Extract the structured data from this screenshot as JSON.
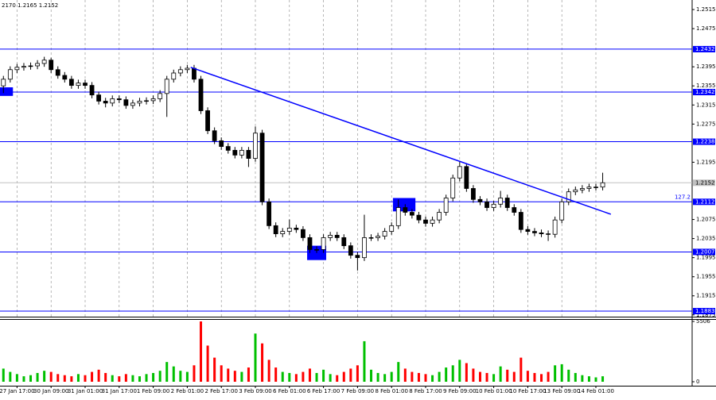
{
  "chart_data": {
    "type": "candlestick",
    "header": "2170 1.2165 1.2152",
    "categories": [
      null,
      null,
      "27 Jan 17:00",
      null,
      null,
      null,
      null,
      "30 Jan 09:00",
      null,
      null,
      null,
      null,
      "31 Jan 01:00",
      null,
      null,
      null,
      null,
      "31 Jan 17:00",
      null,
      null,
      null,
      null,
      "1 Feb 09:00",
      null,
      null,
      null,
      null,
      "2 Feb 01:00",
      null,
      null,
      null,
      null,
      "2 Feb 17:00",
      null,
      null,
      null,
      null,
      "3 Feb 09:00",
      null,
      null,
      null,
      null,
      "6 Feb 01:00",
      null,
      null,
      null,
      null,
      "6 Feb 17:00",
      null,
      null,
      null,
      null,
      "7 Feb 09:00",
      null,
      null,
      null,
      null,
      "8 Feb 01:00",
      null,
      null,
      null,
      null,
      "8 Feb 17:00",
      null,
      null,
      null,
      null,
      "9 Feb 09:00",
      null,
      null,
      null,
      null,
      "10 Feb 01:00",
      null,
      null,
      null,
      null,
      "10 Feb 17:00",
      null,
      null,
      null,
      null,
      "13 Feb 09:00",
      null,
      null,
      null,
      null,
      "14 Feb 01:00",
      null
    ],
    "open": [
      1.2355,
      1.2369,
      1.2389,
      1.2394,
      1.2396,
      1.2397,
      1.2402,
      1.2409,
      1.2389,
      1.2377,
      1.2369,
      1.2356,
      1.2361,
      1.2356,
      1.2336,
      1.2323,
      1.2319,
      1.2328,
      1.2326,
      1.2314,
      1.2319,
      1.2323,
      1.2324,
      1.2328,
      1.2339,
      1.2369,
      1.2382,
      1.2389,
      1.2392,
      1.2369,
      1.2303,
      1.2261,
      1.224,
      1.2228,
      1.222,
      1.221,
      1.222,
      1.2203,
      1.2256,
      1.2112,
      1.2062,
      1.2045,
      1.205,
      1.2057,
      1.2054,
      1.2037,
      1.2012,
      1.2012,
      1.2037,
      1.2042,
      1.2037,
      1.202,
      1.2,
      1.1995,
      1.2037,
      1.2037,
      1.204,
      1.205,
      1.2062,
      1.21,
      1.209,
      1.2084,
      1.2074,
      1.2067,
      1.2074,
      1.209,
      1.212,
      1.2162,
      1.2186,
      1.214,
      1.2117,
      1.2112,
      1.21,
      1.2107,
      1.212,
      1.21,
      1.209,
      1.2054,
      1.205,
      1.2047,
      1.2045,
      1.2044,
      1.2074,
      1.2112,
      1.2133,
      1.2137,
      1.214,
      1.2143,
      1.2143
    ],
    "high": [
      1.2376,
      1.2396,
      1.2401,
      1.2403,
      1.2404,
      1.2409,
      1.2416,
      1.2414,
      1.2396,
      1.2384,
      1.2376,
      1.2368,
      1.2368,
      1.2363,
      1.2343,
      1.233,
      1.2335,
      1.2335,
      1.2333,
      1.2326,
      1.233,
      1.2331,
      1.2335,
      1.2346,
      1.2376,
      1.2389,
      1.2396,
      1.2399,
      1.2399,
      1.2376,
      1.231,
      1.2268,
      1.2247,
      1.2235,
      1.2227,
      1.2227,
      1.2227,
      1.227,
      1.2263,
      1.2119,
      1.2069,
      1.2057,
      1.2075,
      1.2064,
      1.2061,
      1.2044,
      1.2019,
      1.2044,
      1.2049,
      1.2049,
      1.2044,
      1.2027,
      1.2007,
      1.2085,
      1.2044,
      1.2047,
      1.2057,
      1.2069,
      1.2117,
      1.2107,
      1.2097,
      1.2091,
      1.2081,
      1.2081,
      1.2097,
      1.2127,
      1.2169,
      1.2198,
      1.2193,
      1.2147,
      1.2124,
      1.2119,
      1.2114,
      1.2135,
      1.2127,
      1.2107,
      1.2097,
      1.2061,
      1.2057,
      1.2054,
      1.2052,
      1.2081,
      1.2119,
      1.214,
      1.2144,
      1.2147,
      1.215,
      1.215,
      1.2173
    ],
    "low": [
      1.234,
      1.2362,
      1.2382,
      1.2387,
      1.2389,
      1.239,
      1.2395,
      1.2382,
      1.237,
      1.2362,
      1.2349,
      1.2349,
      1.2349,
      1.2329,
      1.2316,
      1.231,
      1.2312,
      1.2319,
      1.2307,
      1.2307,
      1.2312,
      1.2316,
      1.2317,
      1.2321,
      1.229,
      1.2362,
      1.2375,
      1.2382,
      1.2362,
      1.2296,
      1.2254,
      1.2233,
      1.2221,
      1.2213,
      1.2203,
      1.2203,
      1.2185,
      1.2196,
      1.2105,
      1.2055,
      1.2038,
      1.2038,
      1.2043,
      1.2047,
      1.203,
      1.2005,
      1.2005,
      1.2005,
      1.203,
      1.203,
      1.2013,
      1.1993,
      1.1968,
      1.1988,
      1.203,
      1.203,
      1.2033,
      1.2043,
      1.2055,
      1.2083,
      1.2077,
      1.2067,
      1.206,
      1.206,
      1.2067,
      1.2083,
      1.2113,
      1.2155,
      1.2133,
      1.211,
      1.2105,
      1.2093,
      1.2093,
      1.21,
      1.2093,
      1.2083,
      1.2047,
      1.2043,
      1.204,
      1.2038,
      1.203,
      1.2037,
      1.2067,
      1.2105,
      1.2126,
      1.213,
      1.2133,
      1.2136,
      1.2136
    ],
    "close": [
      1.2369,
      1.2389,
      1.2394,
      1.2396,
      1.2397,
      1.2402,
      1.2409,
      1.2389,
      1.2377,
      1.2369,
      1.2356,
      1.2361,
      1.2356,
      1.2336,
      1.2323,
      1.2319,
      1.2328,
      1.2326,
      1.2314,
      1.2319,
      1.2323,
      1.2324,
      1.2328,
      1.2339,
      1.2369,
      1.2382,
      1.2389,
      1.2392,
      1.2369,
      1.2303,
      1.2261,
      1.224,
      1.2228,
      1.222,
      1.221,
      1.222,
      1.2203,
      1.2256,
      1.2112,
      1.2062,
      1.2045,
      1.205,
      1.2057,
      1.2054,
      1.2037,
      1.2012,
      1.2012,
      1.2037,
      1.2042,
      1.2037,
      1.202,
      1.2,
      1.1995,
      1.2037,
      1.2037,
      1.204,
      1.205,
      1.2062,
      1.21,
      1.209,
      1.2084,
      1.2074,
      1.2067,
      1.2074,
      1.209,
      1.212,
      1.2162,
      1.2186,
      1.214,
      1.2117,
      1.2112,
      1.21,
      1.2107,
      1.212,
      1.21,
      1.209,
      1.2054,
      1.205,
      1.2047,
      1.2045,
      1.2044,
      1.2074,
      1.2112,
      1.2133,
      1.2137,
      1.214,
      1.2143,
      1.2143,
      1.2152
    ],
    "volumes": [
      1200,
      900,
      700,
      500,
      600,
      800,
      1000,
      900,
      700,
      600,
      500,
      700,
      600,
      900,
      1100,
      800,
      600,
      500,
      700,
      600,
      500,
      700,
      800,
      1000,
      1800,
      1400,
      1000,
      900,
      1500,
      5506,
      3300,
      2200,
      1500,
      1200,
      1000,
      900,
      1300,
      4400,
      3500,
      2000,
      1300,
      900,
      800,
      700,
      900,
      1200,
      800,
      1100,
      700,
      600,
      900,
      1200,
      1500,
      3700,
      1100,
      800,
      700,
      900,
      1800,
      1200,
      900,
      800,
      700,
      600,
      900,
      1300,
      1500,
      2000,
      1700,
      1200,
      900,
      800,
      700,
      1400,
      1100,
      900,
      2200,
      1000,
      800,
      700,
      900,
      1500,
      1600,
      1100,
      800,
      600,
      500,
      400,
      500
    ],
    "up_color": "#00c000",
    "down_color": "#ff0000",
    "candle_color": "#000000",
    "ylim": [
      1.1873,
      1.2535
    ],
    "yticks": [
      1.2515,
      1.2475,
      1.2395,
      1.2355,
      1.2315,
      1.2275,
      1.2195,
      1.2075,
      1.2035,
      1.1995,
      1.1955,
      1.1915,
      1.1875
    ],
    "levels": [
      1.2432,
      1.2342,
      1.2238,
      1.2112,
      1.2007,
      1.1883
    ],
    "level_color": "#0000ff",
    "last_price": 1.2152,
    "volume_ylim": [
      0,
      5506
    ],
    "volume_yticks": [
      0,
      5506
    ],
    "trendline": {
      "x": [
        27.5,
        89.2
      ],
      "y": [
        1.2394,
        1.2086
      ]
    },
    "zones": [
      {
        "x": [
          -0.5,
          1.4
        ],
        "y": [
          1.2334,
          1.2352
        ]
      },
      {
        "x": [
          44.6,
          47.4
        ],
        "y": [
          1.199,
          1.202
        ]
      },
      {
        "x": [
          57.2,
          60.5
        ],
        "y": [
          1.2092,
          1.212
        ]
      }
    ],
    "fib_label": {
      "text": "127.2",
      "y": 1.2117
    },
    "grid": true
  }
}
